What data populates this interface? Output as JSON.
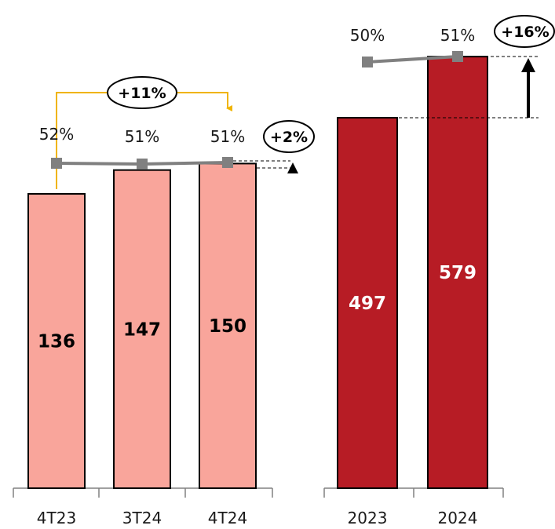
{
  "chart_data": [
    {
      "type": "bar",
      "categories": [
        "4T23",
        "3T24",
        "4T24"
      ],
      "values": [
        136,
        147,
        150
      ],
      "line_values": [
        "52%",
        "51%",
        "51%"
      ],
      "annotations": [
        "+11%",
        "+2%"
      ],
      "ylim": [
        0,
        300
      ],
      "colors": {
        "bar": "#F9A59B",
        "bar_label": "#000000",
        "line": "#808080",
        "yoy_arrow": "#F0B400",
        "qoq_arrow": "#000000"
      }
    },
    {
      "type": "bar",
      "categories": [
        "2023",
        "2024"
      ],
      "values": [
        497,
        579
      ],
      "line_values": [
        "50%",
        "51%"
      ],
      "annotations": [
        "+16%"
      ],
      "ylim": [
        0,
        779
      ],
      "colors": {
        "bar": "#B71C25",
        "bar_label": "#FFFFFF",
        "line": "#808080",
        "arrow": "#000000"
      }
    }
  ]
}
